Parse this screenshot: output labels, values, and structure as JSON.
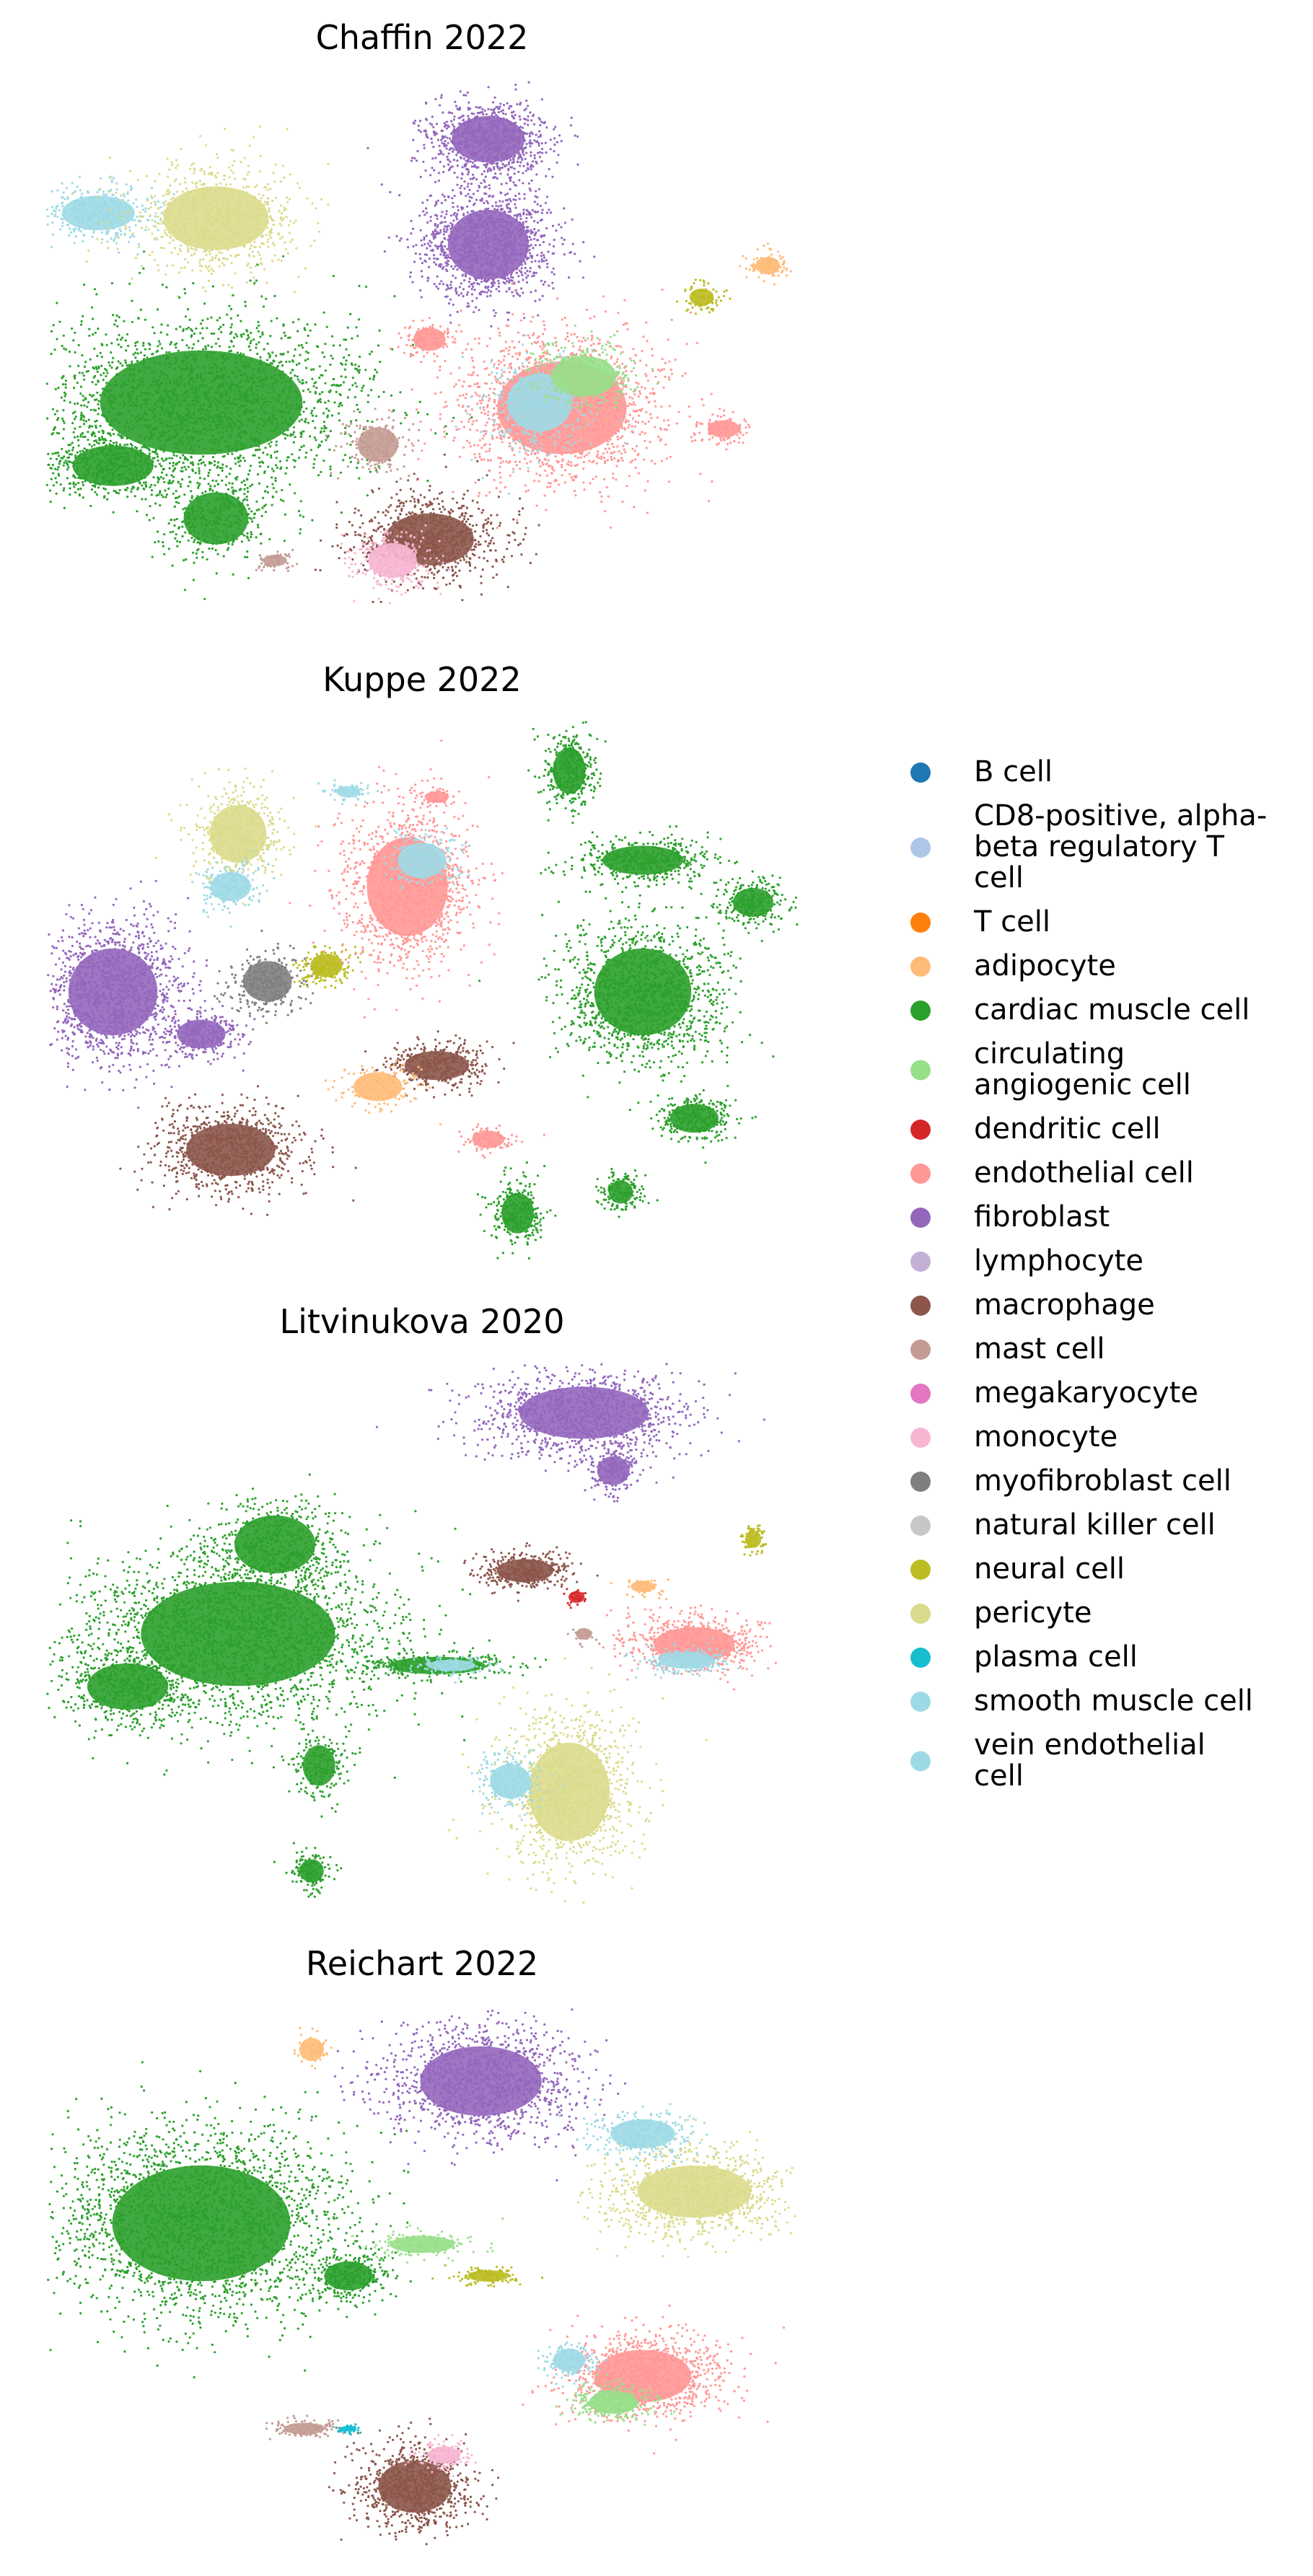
{
  "chart_data": {
    "type": "scatter",
    "legend_placement": "right",
    "axes_visible": false,
    "grid": false,
    "panels": [
      {
        "title": "Chaffin 2022",
        "clusters": [
          {
            "cat": "fibroblast",
            "cx": 0.59,
            "cy": 0.1,
            "rx": 0.09,
            "ry": 0.08,
            "n": 900
          },
          {
            "cat": "fibroblast",
            "cx": 0.59,
            "cy": 0.3,
            "rx": 0.1,
            "ry": 0.12,
            "n": 1300
          },
          {
            "cat": "smooth muscle cell",
            "cx": 0.06,
            "cy": 0.24,
            "rx": 0.09,
            "ry": 0.06,
            "n": 400
          },
          {
            "cat": "pericyte",
            "cx": 0.22,
            "cy": 0.25,
            "rx": 0.13,
            "ry": 0.11,
            "n": 800
          },
          {
            "cat": "cardiac muscle cell",
            "cx": 0.2,
            "cy": 0.6,
            "rx": 0.25,
            "ry": 0.18,
            "n": 2200
          },
          {
            "cat": "cardiac muscle cell",
            "cx": 0.08,
            "cy": 0.72,
            "rx": 0.1,
            "ry": 0.07,
            "n": 500
          },
          {
            "cat": "cardiac muscle cell",
            "cx": 0.22,
            "cy": 0.82,
            "rx": 0.08,
            "ry": 0.09,
            "n": 400
          },
          {
            "cat": "endothelial cell",
            "cx": 0.69,
            "cy": 0.61,
            "rx": 0.16,
            "ry": 0.16,
            "n": 1600
          },
          {
            "cat": "vein endothelial cell",
            "cx": 0.66,
            "cy": 0.6,
            "rx": 0.08,
            "ry": 0.1,
            "n": 400
          },
          {
            "cat": "circulating angiogenic cell",
            "cx": 0.72,
            "cy": 0.55,
            "rx": 0.08,
            "ry": 0.07,
            "n": 300
          },
          {
            "cat": "endothelial cell",
            "cx": 0.51,
            "cy": 0.48,
            "rx": 0.04,
            "ry": 0.04,
            "n": 120
          },
          {
            "cat": "endothelial cell",
            "cx": 0.91,
            "cy": 0.65,
            "rx": 0.04,
            "ry": 0.03,
            "n": 120
          },
          {
            "cat": "neural cell",
            "cx": 0.88,
            "cy": 0.4,
            "rx": 0.03,
            "ry": 0.03,
            "n": 100
          },
          {
            "cat": "adipocyte",
            "cx": 0.97,
            "cy": 0.34,
            "rx": 0.03,
            "ry": 0.03,
            "n": 100
          },
          {
            "cat": "mast cell",
            "cx": 0.44,
            "cy": 0.68,
            "rx": 0.05,
            "ry": 0.06,
            "n": 200
          },
          {
            "cat": "macrophage",
            "cx": 0.51,
            "cy": 0.86,
            "rx": 0.11,
            "ry": 0.09,
            "n": 900
          },
          {
            "cat": "monocyte",
            "cx": 0.46,
            "cy": 0.9,
            "rx": 0.06,
            "ry": 0.06,
            "n": 300
          },
          {
            "cat": "mast cell",
            "cx": 0.3,
            "cy": 0.9,
            "rx": 0.03,
            "ry": 0.02,
            "n": 60
          }
        ]
      },
      {
        "title": "Kuppe 2022",
        "clusters": [
          {
            "cat": "fibroblast",
            "cx": 0.08,
            "cy": 0.5,
            "rx": 0.11,
            "ry": 0.15,
            "n": 1400
          },
          {
            "cat": "fibroblast",
            "cx": 0.2,
            "cy": 0.58,
            "rx": 0.06,
            "ry": 0.05,
            "n": 300
          },
          {
            "cat": "myofibroblast cell",
            "cx": 0.29,
            "cy": 0.48,
            "rx": 0.06,
            "ry": 0.07,
            "n": 300
          },
          {
            "cat": "pericyte",
            "cx": 0.25,
            "cy": 0.2,
            "rx": 0.07,
            "ry": 0.1,
            "n": 500
          },
          {
            "cat": "smooth muscle cell",
            "cx": 0.24,
            "cy": 0.3,
            "rx": 0.05,
            "ry": 0.05,
            "n": 200
          },
          {
            "cat": "neural cell",
            "cx": 0.37,
            "cy": 0.45,
            "rx": 0.04,
            "ry": 0.04,
            "n": 200
          },
          {
            "cat": "endothelial cell",
            "cx": 0.48,
            "cy": 0.3,
            "rx": 0.1,
            "ry": 0.17,
            "n": 1200
          },
          {
            "cat": "smooth muscle cell",
            "cx": 0.5,
            "cy": 0.25,
            "rx": 0.06,
            "ry": 0.06,
            "n": 200
          },
          {
            "cat": "macrophage",
            "cx": 0.24,
            "cy": 0.8,
            "rx": 0.11,
            "ry": 0.09,
            "n": 900
          },
          {
            "cat": "macrophage",
            "cx": 0.52,
            "cy": 0.64,
            "rx": 0.08,
            "ry": 0.05,
            "n": 400
          },
          {
            "cat": "adipocyte",
            "cx": 0.44,
            "cy": 0.68,
            "rx": 0.06,
            "ry": 0.05,
            "n": 150
          },
          {
            "cat": "endothelial cell",
            "cx": 0.59,
            "cy": 0.78,
            "rx": 0.04,
            "ry": 0.03,
            "n": 100
          },
          {
            "cat": "cardiac muscle cell",
            "cx": 0.7,
            "cy": 0.08,
            "rx": 0.04,
            "ry": 0.08,
            "n": 400
          },
          {
            "cat": "cardiac muscle cell",
            "cx": 0.8,
            "cy": 0.25,
            "rx": 0.1,
            "ry": 0.05,
            "n": 500
          },
          {
            "cat": "cardiac muscle cell",
            "cx": 0.8,
            "cy": 0.5,
            "rx": 0.12,
            "ry": 0.15,
            "n": 1400
          },
          {
            "cat": "cardiac muscle cell",
            "cx": 0.95,
            "cy": 0.33,
            "rx": 0.05,
            "ry": 0.05,
            "n": 250
          },
          {
            "cat": "cardiac muscle cell",
            "cx": 0.87,
            "cy": 0.74,
            "rx": 0.06,
            "ry": 0.05,
            "n": 300
          },
          {
            "cat": "cardiac muscle cell",
            "cx": 0.63,
            "cy": 0.92,
            "rx": 0.04,
            "ry": 0.07,
            "n": 300
          },
          {
            "cat": "cardiac muscle cell",
            "cx": 0.77,
            "cy": 0.88,
            "rx": 0.03,
            "ry": 0.04,
            "n": 150
          },
          {
            "cat": "smooth muscle cell",
            "cx": 0.4,
            "cy": 0.12,
            "rx": 0.03,
            "ry": 0.02,
            "n": 60
          },
          {
            "cat": "endothelial cell",
            "cx": 0.52,
            "cy": 0.13,
            "rx": 0.03,
            "ry": 0.02,
            "n": 60
          }
        ]
      },
      {
        "title": "Litvinukova 2020",
        "clusters": [
          {
            "cat": "cardiac muscle cell",
            "cx": 0.25,
            "cy": 0.5,
            "rx": 0.24,
            "ry": 0.18,
            "n": 2400
          },
          {
            "cat": "cardiac muscle cell",
            "cx": 0.1,
            "cy": 0.6,
            "rx": 0.1,
            "ry": 0.08,
            "n": 500
          },
          {
            "cat": "cardiac muscle cell",
            "cx": 0.3,
            "cy": 0.33,
            "rx": 0.1,
            "ry": 0.1,
            "n": 500
          },
          {
            "cat": "cardiac muscle cell",
            "cx": 0.52,
            "cy": 0.56,
            "rx": 0.12,
            "ry": 0.03,
            "n": 300
          },
          {
            "cat": "cardiac muscle cell",
            "cx": 0.36,
            "cy": 0.75,
            "rx": 0.04,
            "ry": 0.07,
            "n": 200
          },
          {
            "cat": "cardiac muscle cell",
            "cx": 0.35,
            "cy": 0.95,
            "rx": 0.03,
            "ry": 0.04,
            "n": 150
          },
          {
            "cat": "smooth muscle cell",
            "cx": 0.54,
            "cy": 0.56,
            "rx": 0.06,
            "ry": 0.02,
            "n": 120
          },
          {
            "cat": "fibroblast",
            "cx": 0.72,
            "cy": 0.08,
            "rx": 0.16,
            "ry": 0.09,
            "n": 1100
          },
          {
            "cat": "fibroblast",
            "cx": 0.76,
            "cy": 0.19,
            "rx": 0.04,
            "ry": 0.05,
            "n": 200
          },
          {
            "cat": "macrophage",
            "cx": 0.64,
            "cy": 0.38,
            "rx": 0.07,
            "ry": 0.04,
            "n": 400
          },
          {
            "cat": "endothelial cell",
            "cx": 0.87,
            "cy": 0.52,
            "rx": 0.1,
            "ry": 0.06,
            "n": 700
          },
          {
            "cat": "vein endothelial cell",
            "cx": 0.86,
            "cy": 0.55,
            "rx": 0.07,
            "ry": 0.03,
            "n": 200
          },
          {
            "cat": "pericyte",
            "cx": 0.7,
            "cy": 0.8,
            "rx": 0.1,
            "ry": 0.17,
            "n": 1100
          },
          {
            "cat": "smooth muscle cell",
            "cx": 0.62,
            "cy": 0.78,
            "rx": 0.05,
            "ry": 0.06,
            "n": 250
          },
          {
            "cat": "neural cell",
            "cx": 0.95,
            "cy": 0.32,
            "rx": 0.02,
            "ry": 0.03,
            "n": 80
          },
          {
            "cat": "mast cell",
            "cx": 0.72,
            "cy": 0.5,
            "rx": 0.02,
            "ry": 0.02,
            "n": 40
          },
          {
            "cat": "adipocyte",
            "cx": 0.8,
            "cy": 0.41,
            "rx": 0.03,
            "ry": 0.02,
            "n": 60
          },
          {
            "cat": "dendritic cell",
            "cx": 0.71,
            "cy": 0.43,
            "rx": 0.02,
            "ry": 0.02,
            "n": 30
          }
        ]
      },
      {
        "title": "Reichart 2022",
        "clusters": [
          {
            "cat": "fibroblast",
            "cx": 0.58,
            "cy": 0.13,
            "rx": 0.15,
            "ry": 0.12,
            "n": 1300
          },
          {
            "cat": "cardiac muscle cell",
            "cx": 0.2,
            "cy": 0.4,
            "rx": 0.22,
            "ry": 0.2,
            "n": 2400
          },
          {
            "cat": "cardiac muscle cell",
            "cx": 0.4,
            "cy": 0.5,
            "rx": 0.06,
            "ry": 0.05,
            "n": 300
          },
          {
            "cat": "circulating angiogenic cell",
            "cx": 0.5,
            "cy": 0.44,
            "rx": 0.08,
            "ry": 0.03,
            "n": 150
          },
          {
            "cat": "pericyte",
            "cx": 0.87,
            "cy": 0.34,
            "rx": 0.14,
            "ry": 0.09,
            "n": 1000
          },
          {
            "cat": "smooth muscle cell",
            "cx": 0.8,
            "cy": 0.23,
            "rx": 0.08,
            "ry": 0.05,
            "n": 300
          },
          {
            "cat": "neural cell",
            "cx": 0.59,
            "cy": 0.5,
            "rx": 0.05,
            "ry": 0.02,
            "n": 120
          },
          {
            "cat": "endothelial cell",
            "cx": 0.8,
            "cy": 0.69,
            "rx": 0.12,
            "ry": 0.09,
            "n": 1100
          },
          {
            "cat": "circulating angiogenic cell",
            "cx": 0.76,
            "cy": 0.74,
            "rx": 0.06,
            "ry": 0.04,
            "n": 300
          },
          {
            "cat": "smooth muscle cell",
            "cx": 0.7,
            "cy": 0.66,
            "rx": 0.04,
            "ry": 0.04,
            "n": 150
          },
          {
            "cat": "macrophage",
            "cx": 0.49,
            "cy": 0.9,
            "rx": 0.09,
            "ry": 0.09,
            "n": 900
          },
          {
            "cat": "mast cell",
            "cx": 0.34,
            "cy": 0.79,
            "rx": 0.05,
            "ry": 0.02,
            "n": 150
          },
          {
            "cat": "plasma cell",
            "cx": 0.4,
            "cy": 0.79,
            "rx": 0.02,
            "ry": 0.01,
            "n": 40
          },
          {
            "cat": "adipocyte",
            "cx": 0.35,
            "cy": 0.07,
            "rx": 0.03,
            "ry": 0.04,
            "n": 50
          },
          {
            "cat": "monocyte",
            "cx": 0.53,
            "cy": 0.84,
            "rx": 0.04,
            "ry": 0.03,
            "n": 150
          }
        ]
      }
    ],
    "legend": [
      {
        "label": "B cell",
        "color": "#1f77b4"
      },
      {
        "label": "CD8-positive, alpha-beta regulatory T cell",
        "lines": [
          "CD8-positive, alpha-",
          "beta regulatory T",
          "cell"
        ],
        "color": "#aec7e8"
      },
      {
        "label": "T cell",
        "color": "#ff7f0e"
      },
      {
        "label": "adipocyte",
        "color": "#ffbb78"
      },
      {
        "label": "cardiac muscle cell",
        "color": "#2ca02c"
      },
      {
        "label": "circulating angiogenic cell",
        "lines": [
          "circulating",
          "angiogenic cell"
        ],
        "color": "#98df8a"
      },
      {
        "label": "dendritic cell",
        "color": "#d62728"
      },
      {
        "label": "endothelial cell",
        "color": "#ff9896"
      },
      {
        "label": "fibroblast",
        "color": "#9467bd"
      },
      {
        "label": "lymphocyte",
        "color": "#c5b0d5"
      },
      {
        "label": "macrophage",
        "color": "#8c564b"
      },
      {
        "label": "mast cell",
        "color": "#c49c94"
      },
      {
        "label": "megakaryocyte",
        "color": "#e377c2"
      },
      {
        "label": "monocyte",
        "color": "#f7b6d2"
      },
      {
        "label": "myofibroblast cell",
        "color": "#7f7f7f"
      },
      {
        "label": "natural killer cell",
        "color": "#c7c7c7"
      },
      {
        "label": "neural cell",
        "color": "#bcbd22"
      },
      {
        "label": "pericyte",
        "color": "#dbdb8d"
      },
      {
        "label": "plasma cell",
        "color": "#17becf"
      },
      {
        "label": "smooth muscle cell",
        "color": "#9edae5"
      },
      {
        "label": "vein endothelial cell",
        "lines": [
          "vein endothelial",
          "cell"
        ],
        "color": "#9edae5"
      }
    ]
  }
}
